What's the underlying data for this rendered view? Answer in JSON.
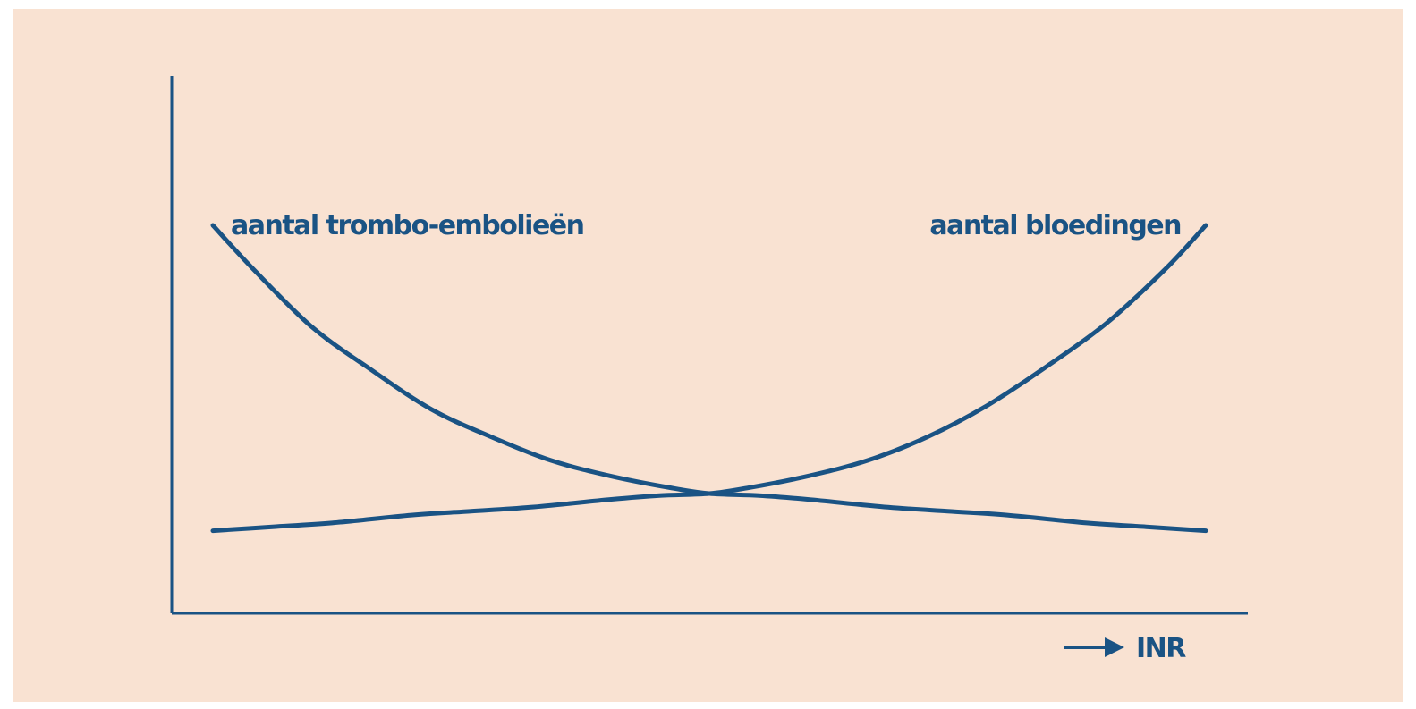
{
  "chart_data": {
    "type": "line",
    "title": "",
    "xlabel": "INR",
    "ylabel": "",
    "x_direction_arrow": true,
    "xlim": [
      0,
      1
    ],
    "ylim": [
      0,
      1
    ],
    "axis_ticks": false,
    "grid": false,
    "legend": "none",
    "series": [
      {
        "name": "aantal trombo-embolieën",
        "label_placement": "top-left",
        "x": [
          0.0,
          0.04,
          0.1,
          0.16,
          0.22,
          0.28,
          0.34,
          0.4,
          0.46,
          0.5,
          0.55,
          0.6,
          0.68,
          0.74,
          0.8,
          0.88,
          0.94,
          1.0
        ],
        "y": [
          0.79,
          0.68,
          0.53,
          0.42,
          0.32,
          0.25,
          0.19,
          0.15,
          0.12,
          0.105,
          0.1,
          0.09,
          0.07,
          0.06,
          0.05,
          0.03,
          0.02,
          0.01
        ]
      },
      {
        "name": "aantal bloedingen",
        "label_placement": "top-right",
        "x": [
          0.0,
          0.06,
          0.12,
          0.2,
          0.26,
          0.32,
          0.4,
          0.45,
          0.5,
          0.54,
          0.6,
          0.66,
          0.72,
          0.78,
          0.84,
          0.9,
          0.96,
          1.0
        ],
        "y": [
          0.01,
          0.02,
          0.03,
          0.05,
          0.06,
          0.07,
          0.09,
          0.1,
          0.105,
          0.12,
          0.15,
          0.19,
          0.25,
          0.33,
          0.43,
          0.54,
          0.68,
          0.79
        ]
      }
    ]
  },
  "colors": {
    "background": "#f9e2d2",
    "ink": "#1a5384"
  }
}
